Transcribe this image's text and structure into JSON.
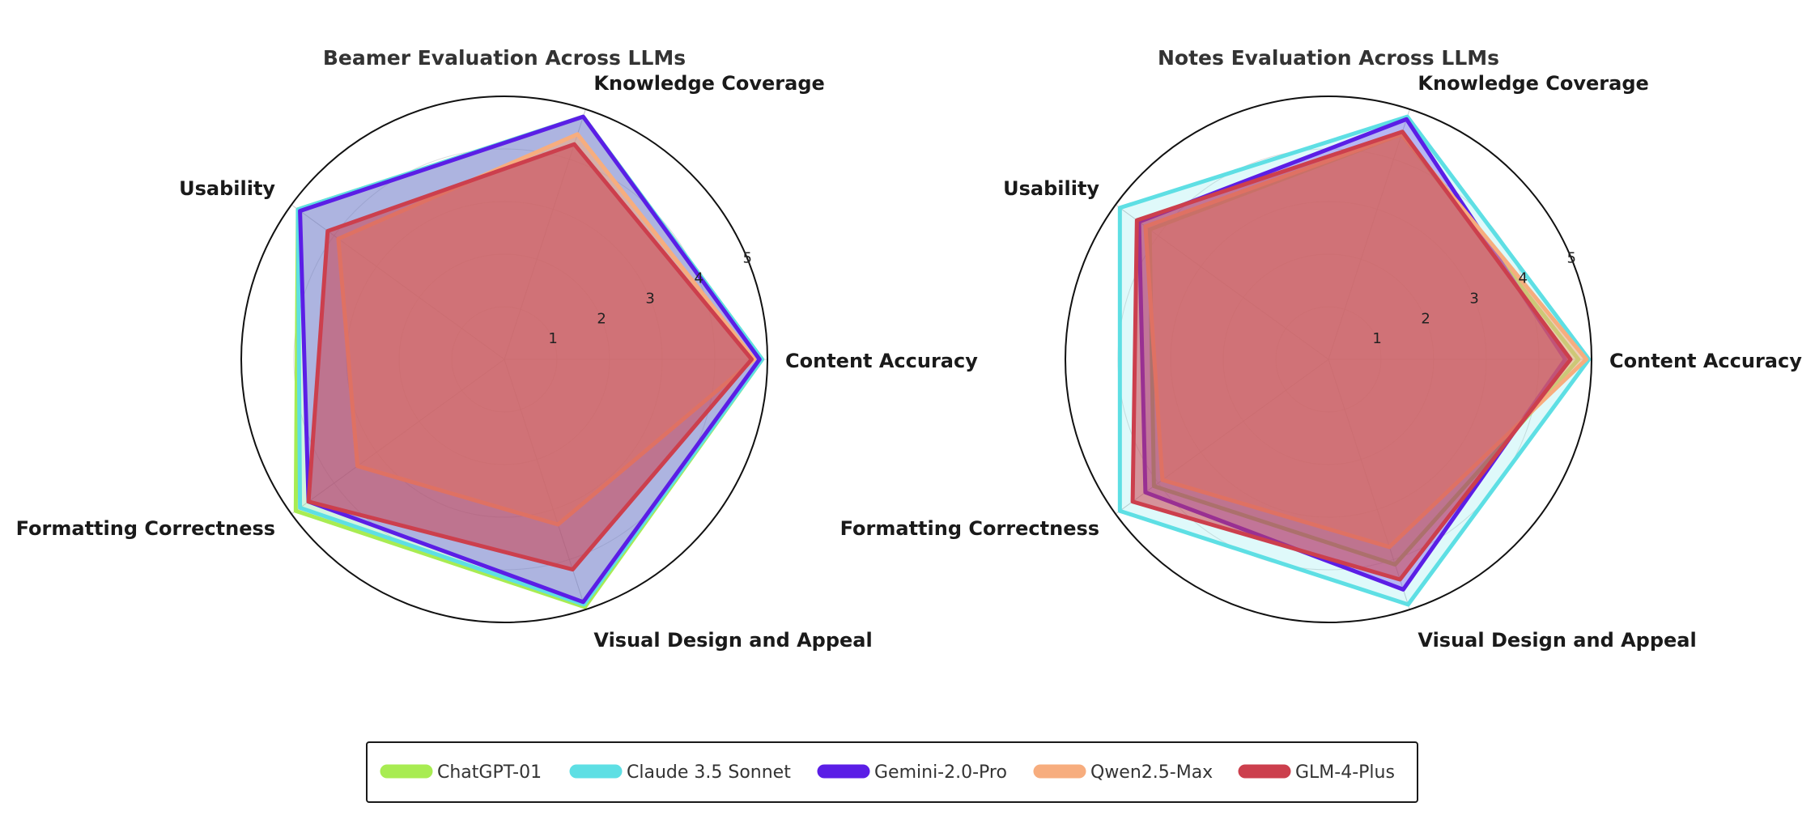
{
  "chart_data": [
    {
      "type": "radar",
      "title": "Beamer Evaluation Across LLMs",
      "axes": [
        "Content Accuracy",
        "Knowledge Coverage",
        "Usability",
        "Formatting Correctness",
        "Visual Design and Appeal"
      ],
      "rlim": [
        0,
        5
      ],
      "rticks": [
        1,
        2,
        3,
        4,
        5
      ],
      "series": [
        {
          "name": "ChatGPT-01",
          "values": [
            4.9,
            4.85,
            4.85,
            4.9,
            4.95
          ]
        },
        {
          "name": "Claude 3.5 Sonnet",
          "values": [
            4.9,
            4.85,
            4.85,
            4.8,
            4.9
          ]
        },
        {
          "name": "Gemini-2.0-Pro",
          "values": [
            4.85,
            4.85,
            4.8,
            4.6,
            4.85
          ]
        },
        {
          "name": "Qwen2.5-Max",
          "values": [
            4.75,
            4.5,
            3.9,
            3.45,
            3.3
          ]
        },
        {
          "name": "GLM-4-Plus",
          "values": [
            4.7,
            4.3,
            4.15,
            4.6,
            4.2
          ]
        }
      ]
    },
    {
      "type": "radar",
      "title": "Notes Evaluation Across LLMs",
      "axes": [
        "Content Accuracy",
        "Knowledge Coverage",
        "Usability",
        "Formatting Correctness",
        "Visual Design and Appeal"
      ],
      "rlim": [
        0,
        5
      ],
      "rticks": [
        1,
        2,
        3,
        4,
        5
      ],
      "series": [
        {
          "name": "ChatGPT-01",
          "values": [
            4.75,
            4.5,
            4.2,
            4.1,
            4.1
          ]
        },
        {
          "name": "Claude 3.5 Sonnet",
          "values": [
            4.95,
            4.85,
            4.9,
            4.9,
            4.9
          ]
        },
        {
          "name": "Gemini-2.0-Pro",
          "values": [
            4.5,
            4.8,
            4.45,
            4.3,
            4.6
          ]
        },
        {
          "name": "Qwen2.5-Max",
          "values": [
            4.9,
            4.5,
            4.3,
            3.9,
            3.75
          ]
        },
        {
          "name": "GLM-4-Plus",
          "values": [
            4.6,
            4.55,
            4.5,
            4.6,
            4.4
          ]
        }
      ]
    }
  ],
  "legend": {
    "placement": "bottom-center",
    "entries": [
      {
        "name": "ChatGPT-01",
        "color": "#a8ec52"
      },
      {
        "name": "Claude 3.5 Sonnet",
        "color": "#5edfe4"
      },
      {
        "name": "Gemini-2.0-Pro",
        "color": "#5b1ee6"
      },
      {
        "name": "Qwen2.5-Max",
        "color": "#f7ad7e"
      },
      {
        "name": "GLM-4-Plus",
        "color": "#cc3f4d"
      }
    ]
  },
  "colors": {
    "ChatGPT-01": "#a8ec52",
    "Claude 3.5 Sonnet": "#5edfe4",
    "Gemini-2.0-Pro": "#5b1ee6",
    "Qwen2.5-Max": "#f7ad7e",
    "GLM-4-Plus": "#cc3f4d"
  }
}
